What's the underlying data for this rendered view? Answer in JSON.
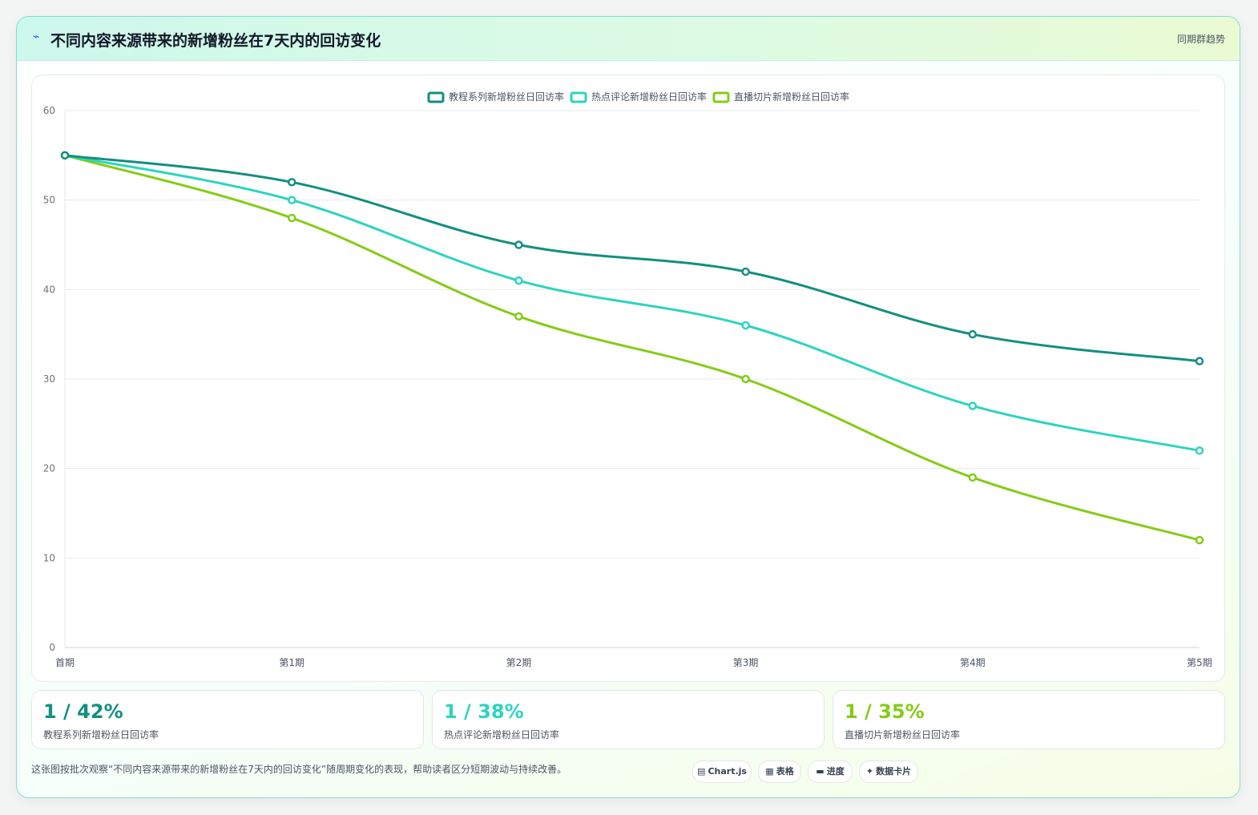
{
  "header": {
    "title": "不同内容来源带来的新增粉丝在7天内的回访变化",
    "badge": "同期群趋势",
    "icon": "pulse-icon"
  },
  "chart_data": {
    "type": "line",
    "title": "",
    "xlabel": "",
    "ylabel": "",
    "categories": [
      "首期",
      "第1期",
      "第2期",
      "第3期",
      "第4期",
      "第5期"
    ],
    "ylim": [
      0,
      60
    ],
    "yticks": [
      0,
      10,
      20,
      30,
      40,
      50,
      60
    ],
    "grid": true,
    "legend": "top-center",
    "series": [
      {
        "name": "教程系列新增粉丝日回访率",
        "color": "#138f80",
        "values": [
          55,
          52,
          45,
          42,
          35,
          32
        ]
      },
      {
        "name": "热点评论新增粉丝日回访率",
        "color": "#2dd4bf",
        "values": [
          55,
          50,
          41,
          36,
          27,
          22
        ]
      },
      {
        "name": "直播切片新增粉丝日回访率",
        "color": "#84cc16",
        "values": [
          55,
          48,
          37,
          30,
          19,
          12
        ]
      }
    ]
  },
  "stats": [
    {
      "value": "1 / 42%",
      "label": "教程系列新增粉丝日回访率",
      "color": "#138f80"
    },
    {
      "value": "1 / 38%",
      "label": "热点评论新增粉丝日回访率",
      "color": "#2dd4bf"
    },
    {
      "value": "1 / 35%",
      "label": "直播切片新增粉丝日回访率",
      "color": "#84cc16"
    }
  ],
  "footnote": "这张图按批次观察“不同内容来源带来的新增粉丝在7天内的回访变化”随周期变化的表现，帮助读者区分短期波动与持续改善。",
  "chips": [
    {
      "icon": "▤",
      "icon_name": "chart-icon",
      "label": "Chart.js"
    },
    {
      "icon": "▦",
      "icon_name": "table-icon",
      "label": "表格"
    },
    {
      "icon": "▬",
      "icon_name": "progress-icon",
      "label": "进度"
    },
    {
      "icon": "✦",
      "icon_name": "sparkle-icon",
      "label": "数据卡片"
    }
  ]
}
